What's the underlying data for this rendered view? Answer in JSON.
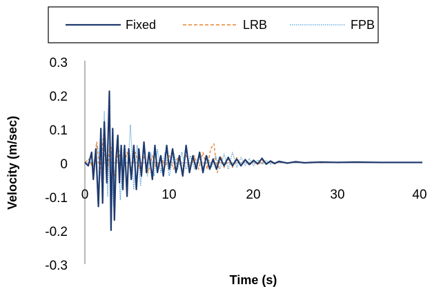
{
  "chart_data": {
    "type": "line",
    "title": "",
    "xlabel": "Time (s)",
    "ylabel": "Velocity (m/sec)",
    "xlim": [
      0,
      40
    ],
    "ylim": [
      -0.3,
      0.3
    ],
    "x_ticks": [
      "0",
      "10",
      "20",
      "30",
      "40"
    ],
    "y_ticks": [
      "0.3",
      "0.2",
      "0.1",
      "0",
      "-0.1",
      "-0.2",
      "-0.3"
    ],
    "grid": false,
    "legend_position": "top",
    "series": [
      {
        "name": "Fixed",
        "color": "#1f3a6e",
        "style": "solid",
        "x": [
          0,
          0.4,
          0.8,
          1.0,
          1.3,
          1.6,
          1.9,
          2.1,
          2.3,
          2.6,
          2.9,
          3.1,
          3.3,
          3.5,
          3.7,
          3.9,
          4.1,
          4.3,
          4.5,
          4.7,
          5.0,
          5.2,
          5.5,
          5.8,
          6.1,
          6.4,
          6.7,
          7.0,
          7.3,
          7.6,
          8.0,
          8.3,
          8.6,
          9.0,
          9.3,
          9.7,
          10.0,
          10.4,
          10.8,
          11.2,
          11.6,
          12.0,
          12.4,
          12.8,
          13.2,
          13.6,
          14.0,
          14.4,
          14.8,
          15.2,
          15.6,
          16.0,
          16.5,
          17.0,
          17.5,
          18.0,
          18.5,
          19.0,
          19.5,
          20.0,
          20.5,
          21.0,
          21.5,
          22.0,
          22.5,
          23.0,
          24.0,
          25.0,
          26.0,
          28.0,
          30.0,
          32.0,
          35.0,
          38.0,
          40.0
        ],
        "y": [
          0,
          -0.01,
          0.03,
          -0.05,
          0.04,
          -0.13,
          0.1,
          -0.12,
          0.12,
          -0.06,
          0.21,
          -0.2,
          0.1,
          -0.17,
          0.01,
          0.08,
          -0.06,
          0.05,
          -0.08,
          0.05,
          -0.1,
          0.04,
          -0.05,
          0.05,
          -0.08,
          0.04,
          -0.04,
          0.06,
          -0.03,
          0.03,
          -0.05,
          0.05,
          -0.03,
          0.02,
          -0.04,
          0.05,
          -0.02,
          0.04,
          -0.03,
          0.02,
          -0.04,
          0.05,
          -0.03,
          0.02,
          -0.02,
          0.03,
          -0.03,
          0.02,
          -0.02,
          0.01,
          -0.02,
          0.015,
          -0.01,
          0.015,
          -0.01,
          0.01,
          -0.01,
          0.008,
          -0.006,
          0.006,
          -0.004,
          0.012,
          -0.005,
          0.004,
          -0.003,
          0.003,
          -0.002,
          0.002,
          -0.001,
          0.001,
          0,
          0.001,
          0,
          0,
          0
        ]
      },
      {
        "name": "LRB",
        "color": "#e8822a",
        "style": "dashed",
        "x": [
          0,
          0.5,
          1.0,
          1.4,
          1.8,
          2.2,
          2.6,
          3.0,
          3.5,
          4.0,
          4.5,
          5.0,
          5.5,
          6.0,
          6.5,
          7.0,
          7.5,
          8.0,
          8.5,
          9.0,
          9.5,
          10.0,
          10.5,
          11.0,
          11.5,
          12.0,
          12.5,
          13.0,
          13.5,
          14.0,
          14.5,
          14.9,
          15.3,
          15.7,
          16.1,
          16.5,
          17.0,
          17.5,
          18.0,
          18.5,
          19.0,
          19.5,
          20.0,
          20.5,
          21.0,
          21.5,
          22.0,
          22.5,
          23.0,
          24.0,
          25.0,
          26.0,
          27.0,
          28.0,
          30.0,
          33.0,
          36.0,
          40.0
        ],
        "y": [
          0,
          0.01,
          -0.02,
          0.06,
          -0.03,
          0.08,
          -0.05,
          0.06,
          -0.04,
          0.04,
          -0.03,
          0.03,
          -0.02,
          0.03,
          -0.02,
          0.02,
          -0.03,
          0.02,
          -0.02,
          0.02,
          -0.015,
          0.02,
          -0.02,
          0.015,
          -0.02,
          0.02,
          -0.015,
          0.02,
          -0.02,
          0.03,
          -0.02,
          0.04,
          0.055,
          -0.03,
          0.02,
          -0.015,
          0.01,
          -0.015,
          0.015,
          -0.01,
          0.01,
          -0.01,
          0.008,
          -0.008,
          0.006,
          -0.006,
          0.005,
          -0.005,
          0.004,
          -0.003,
          0.003,
          -0.002,
          0.002,
          -0.001,
          0.001,
          0,
          0,
          0
        ]
      },
      {
        "name": "FPB",
        "color": "#4a9bd4",
        "style": "dotted",
        "x": [
          0,
          0.5,
          1.0,
          1.5,
          2.0,
          2.3,
          2.7,
          3.0,
          3.4,
          3.8,
          4.2,
          4.6,
          5.0,
          5.4,
          5.8,
          6.2,
          6.6,
          7.0,
          7.4,
          7.8,
          8.2,
          8.6,
          9.0,
          9.5,
          10.0,
          10.5,
          11.0,
          11.5,
          12.0,
          12.5,
          13.0,
          13.5,
          14.0,
          14.5,
          15.0,
          15.5,
          16.0,
          16.5,
          17.0,
          17.5,
          18.0,
          18.5,
          19.0,
          19.5,
          20.0,
          20.5,
          21.0,
          21.5,
          22.0,
          23.0,
          24.0,
          25.0,
          26.0,
          27.0,
          28.0,
          30.0,
          34.0,
          40.0
        ],
        "y": [
          0,
          0.01,
          -0.02,
          0.05,
          -0.06,
          0.15,
          -0.1,
          0.08,
          -0.13,
          0.07,
          -0.11,
          0.04,
          -0.06,
          0.11,
          -0.08,
          0.05,
          -0.07,
          0.05,
          -0.04,
          0.03,
          -0.04,
          0.04,
          -0.03,
          0.03,
          -0.04,
          0.03,
          -0.02,
          0.03,
          -0.02,
          0.02,
          -0.02,
          0.02,
          -0.015,
          0.02,
          -0.015,
          0.02,
          -0.02,
          0.025,
          -0.02,
          0.03,
          -0.015,
          0.015,
          -0.01,
          0.012,
          -0.01,
          0.008,
          -0.006,
          0.006,
          -0.005,
          0.004,
          -0.003,
          0.003,
          -0.002,
          0.001,
          -0.001,
          0.001,
          0,
          0
        ]
      }
    ]
  }
}
